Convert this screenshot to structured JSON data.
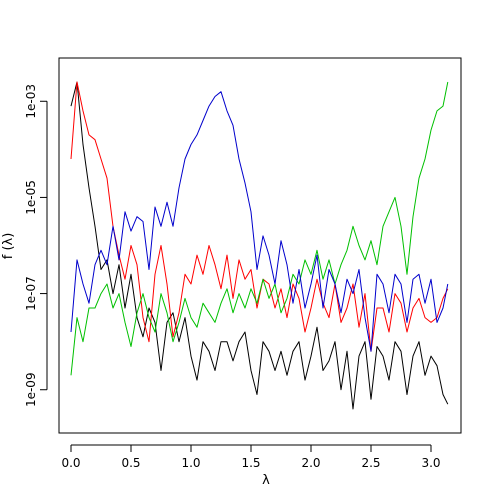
{
  "chart_data": {
    "type": "line",
    "title": "",
    "xlabel": "λ",
    "ylabel": "f (λ)",
    "xlim": [
      -0.1,
      3.25
    ],
    "ylim_log10": [
      -9.9,
      -2.1
    ],
    "y_scale": "log",
    "grid": false,
    "legend": "none",
    "x_ticks": [
      0.0,
      0.5,
      1.0,
      1.5,
      2.0,
      2.5,
      3.0
    ],
    "x_tick_labels": [
      "0.0",
      "0.5",
      "1.0",
      "1.5",
      "2.0",
      "2.5",
      "3.0"
    ],
    "y_ticks_log10": [
      -9,
      -7,
      -5,
      -3
    ],
    "y_tick_labels": [
      "1e-09",
      "1e-07",
      "1e-05",
      "1e-03"
    ],
    "series": [
      {
        "color": "#000000",
        "points_log10": [
          [
            0.0,
            -3.1
          ],
          [
            0.05,
            -2.6
          ],
          [
            0.1,
            -3.9
          ],
          [
            0.15,
            -4.8
          ],
          [
            0.2,
            -5.6
          ],
          [
            0.25,
            -6.5
          ],
          [
            0.3,
            -6.3
          ],
          [
            0.35,
            -7.0
          ],
          [
            0.4,
            -6.4
          ],
          [
            0.45,
            -7.3
          ],
          [
            0.5,
            -6.6
          ],
          [
            0.55,
            -7.5
          ],
          [
            0.6,
            -7.9
          ],
          [
            0.65,
            -7.3
          ],
          [
            0.7,
            -7.6
          ],
          [
            0.75,
            -8.6
          ],
          [
            0.8,
            -7.6
          ],
          [
            0.85,
            -7.4
          ],
          [
            0.9,
            -8.0
          ],
          [
            0.95,
            -7.5
          ],
          [
            1.0,
            -8.3
          ],
          [
            1.05,
            -8.8
          ],
          [
            1.1,
            -8.0
          ],
          [
            1.15,
            -8.2
          ],
          [
            1.2,
            -8.6
          ],
          [
            1.25,
            -8.0
          ],
          [
            1.3,
            -8.0
          ],
          [
            1.35,
            -8.4
          ],
          [
            1.4,
            -8.0
          ],
          [
            1.45,
            -7.8
          ],
          [
            1.5,
            -8.6
          ],
          [
            1.55,
            -9.1
          ],
          [
            1.6,
            -8.0
          ],
          [
            1.65,
            -8.2
          ],
          [
            1.7,
            -8.6
          ],
          [
            1.75,
            -8.2
          ],
          [
            1.8,
            -8.7
          ],
          [
            1.85,
            -8.2
          ],
          [
            1.9,
            -8.0
          ],
          [
            1.95,
            -8.8
          ],
          [
            2.0,
            -8.3
          ],
          [
            2.05,
            -7.7
          ],
          [
            2.1,
            -8.6
          ],
          [
            2.15,
            -8.4
          ],
          [
            2.2,
            -8.0
          ],
          [
            2.25,
            -9.0
          ],
          [
            2.3,
            -8.2
          ],
          [
            2.35,
            -9.4
          ],
          [
            2.4,
            -8.3
          ],
          [
            2.45,
            -8.0
          ],
          [
            2.5,
            -9.2
          ],
          [
            2.55,
            -8.1
          ],
          [
            2.6,
            -8.3
          ],
          [
            2.65,
            -8.8
          ],
          [
            2.7,
            -8.0
          ],
          [
            2.75,
            -8.2
          ],
          [
            2.8,
            -9.1
          ],
          [
            2.85,
            -8.3
          ],
          [
            2.9,
            -8.0
          ],
          [
            2.95,
            -8.7
          ],
          [
            3.0,
            -8.3
          ],
          [
            3.05,
            -8.5
          ],
          [
            3.1,
            -9.1
          ],
          [
            3.14,
            -9.3
          ]
        ]
      },
      {
        "color": "#ff0000",
        "points_log10": [
          [
            0.0,
            -4.2
          ],
          [
            0.05,
            -2.6
          ],
          [
            0.1,
            -3.2
          ],
          [
            0.15,
            -3.7
          ],
          [
            0.2,
            -3.8
          ],
          [
            0.25,
            -4.2
          ],
          [
            0.3,
            -4.6
          ],
          [
            0.35,
            -5.6
          ],
          [
            0.4,
            -6.2
          ],
          [
            0.45,
            -6.7
          ],
          [
            0.5,
            -6.0
          ],
          [
            0.55,
            -6.4
          ],
          [
            0.6,
            -7.5
          ],
          [
            0.65,
            -8.0
          ],
          [
            0.7,
            -6.6
          ],
          [
            0.75,
            -6.0
          ],
          [
            0.8,
            -6.8
          ],
          [
            0.85,
            -7.9
          ],
          [
            0.9,
            -7.4
          ],
          [
            0.95,
            -6.6
          ],
          [
            1.0,
            -6.8
          ],
          [
            1.05,
            -6.2
          ],
          [
            1.1,
            -6.6
          ],
          [
            1.15,
            -6.0
          ],
          [
            1.2,
            -6.4
          ],
          [
            1.25,
            -6.9
          ],
          [
            1.3,
            -6.2
          ],
          [
            1.35,
            -7.1
          ],
          [
            1.4,
            -6.3
          ],
          [
            1.45,
            -6.7
          ],
          [
            1.5,
            -6.5
          ],
          [
            1.55,
            -7.3
          ],
          [
            1.6,
            -6.7
          ],
          [
            1.65,
            -6.8
          ],
          [
            1.7,
            -7.3
          ],
          [
            1.75,
            -6.9
          ],
          [
            1.8,
            -7.5
          ],
          [
            1.85,
            -6.8
          ],
          [
            1.9,
            -7.1
          ],
          [
            1.95,
            -7.8
          ],
          [
            2.0,
            -7.3
          ],
          [
            2.05,
            -6.7
          ],
          [
            2.1,
            -7.2
          ],
          [
            2.15,
            -7.5
          ],
          [
            2.2,
            -6.8
          ],
          [
            2.25,
            -7.6
          ],
          [
            2.3,
            -7.3
          ],
          [
            2.35,
            -6.8
          ],
          [
            2.4,
            -7.7
          ],
          [
            2.45,
            -7.0
          ],
          [
            2.5,
            -8.2
          ],
          [
            2.55,
            -7.3
          ],
          [
            2.6,
            -7.3
          ],
          [
            2.65,
            -7.8
          ],
          [
            2.7,
            -7.0
          ],
          [
            2.75,
            -7.2
          ],
          [
            2.8,
            -7.8
          ],
          [
            2.85,
            -7.3
          ],
          [
            2.9,
            -7.1
          ],
          [
            2.95,
            -7.5
          ],
          [
            3.0,
            -7.6
          ],
          [
            3.05,
            -7.5
          ],
          [
            3.1,
            -7.1
          ],
          [
            3.14,
            -6.9
          ]
        ]
      },
      {
        "color": "#00c000",
        "points_log10": [
          [
            0.0,
            -8.7
          ],
          [
            0.05,
            -7.5
          ],
          [
            0.1,
            -8.0
          ],
          [
            0.15,
            -7.3
          ],
          [
            0.2,
            -7.3
          ],
          [
            0.25,
            -7.0
          ],
          [
            0.3,
            -6.8
          ],
          [
            0.35,
            -7.3
          ],
          [
            0.4,
            -7.0
          ],
          [
            0.45,
            -7.6
          ],
          [
            0.5,
            -8.1
          ],
          [
            0.55,
            -7.4
          ],
          [
            0.6,
            -7.0
          ],
          [
            0.65,
            -7.5
          ],
          [
            0.7,
            -7.8
          ],
          [
            0.75,
            -7.0
          ],
          [
            0.8,
            -7.4
          ],
          [
            0.85,
            -8.0
          ],
          [
            0.9,
            -7.6
          ],
          [
            0.95,
            -7.1
          ],
          [
            1.0,
            -7.5
          ],
          [
            1.05,
            -7.7
          ],
          [
            1.1,
            -7.2
          ],
          [
            1.15,
            -7.4
          ],
          [
            1.2,
            -7.6
          ],
          [
            1.25,
            -7.2
          ],
          [
            1.3,
            -6.9
          ],
          [
            1.35,
            -7.4
          ],
          [
            1.4,
            -7.0
          ],
          [
            1.45,
            -7.3
          ],
          [
            1.5,
            -6.9
          ],
          [
            1.55,
            -7.2
          ],
          [
            1.6,
            -6.7
          ],
          [
            1.65,
            -7.1
          ],
          [
            1.7,
            -6.8
          ],
          [
            1.75,
            -7.4
          ],
          [
            1.8,
            -7.1
          ],
          [
            1.85,
            -6.6
          ],
          [
            1.9,
            -6.8
          ],
          [
            1.95,
            -6.3
          ],
          [
            2.0,
            -6.6
          ],
          [
            2.05,
            -6.1
          ],
          [
            2.1,
            -6.7
          ],
          [
            2.15,
            -6.3
          ],
          [
            2.2,
            -6.8
          ],
          [
            2.25,
            -6.4
          ],
          [
            2.3,
            -6.1
          ],
          [
            2.35,
            -5.6
          ],
          [
            2.4,
            -6.0
          ],
          [
            2.45,
            -6.3
          ],
          [
            2.5,
            -5.9
          ],
          [
            2.55,
            -6.4
          ],
          [
            2.6,
            -5.6
          ],
          [
            2.65,
            -5.3
          ],
          [
            2.7,
            -5.0
          ],
          [
            2.75,
            -5.6
          ],
          [
            2.8,
            -6.6
          ],
          [
            2.85,
            -5.4
          ],
          [
            2.9,
            -4.6
          ],
          [
            2.95,
            -4.2
          ],
          [
            3.0,
            -3.6
          ],
          [
            3.05,
            -3.2
          ],
          [
            3.1,
            -3.1
          ],
          [
            3.14,
            -2.6
          ]
        ]
      },
      {
        "color": "#0000cc",
        "points_log10": [
          [
            0.0,
            -7.8
          ],
          [
            0.05,
            -6.3
          ],
          [
            0.1,
            -6.8
          ],
          [
            0.15,
            -7.2
          ],
          [
            0.2,
            -6.4
          ],
          [
            0.25,
            -6.1
          ],
          [
            0.3,
            -6.4
          ],
          [
            0.35,
            -5.6
          ],
          [
            0.4,
            -6.3
          ],
          [
            0.45,
            -5.3
          ],
          [
            0.5,
            -5.7
          ],
          [
            0.55,
            -5.4
          ],
          [
            0.6,
            -5.5
          ],
          [
            0.65,
            -6.5
          ],
          [
            0.7,
            -5.2
          ],
          [
            0.75,
            -5.6
          ],
          [
            0.8,
            -5.1
          ],
          [
            0.85,
            -5.6
          ],
          [
            0.9,
            -4.8
          ],
          [
            0.95,
            -4.2
          ],
          [
            1.0,
            -3.9
          ],
          [
            1.05,
            -3.7
          ],
          [
            1.1,
            -3.4
          ],
          [
            1.15,
            -3.1
          ],
          [
            1.2,
            -2.9
          ],
          [
            1.25,
            -2.8
          ],
          [
            1.3,
            -3.2
          ],
          [
            1.35,
            -3.5
          ],
          [
            1.4,
            -4.2
          ],
          [
            1.45,
            -4.7
          ],
          [
            1.5,
            -5.3
          ],
          [
            1.55,
            -6.5
          ],
          [
            1.6,
            -5.8
          ],
          [
            1.65,
            -6.2
          ],
          [
            1.7,
            -6.8
          ],
          [
            1.75,
            -5.9
          ],
          [
            1.8,
            -6.4
          ],
          [
            1.85,
            -7.2
          ],
          [
            1.9,
            -6.5
          ],
          [
            1.95,
            -7.3
          ],
          [
            2.0,
            -6.8
          ],
          [
            2.05,
            -6.2
          ],
          [
            2.1,
            -7.3
          ],
          [
            2.15,
            -6.5
          ],
          [
            2.2,
            -6.8
          ],
          [
            2.25,
            -7.4
          ],
          [
            2.3,
            -6.7
          ],
          [
            2.35,
            -7.0
          ],
          [
            2.4,
            -6.5
          ],
          [
            2.45,
            -7.5
          ],
          [
            2.5,
            -8.2
          ],
          [
            2.55,
            -6.6
          ],
          [
            2.6,
            -6.8
          ],
          [
            2.65,
            -7.4
          ],
          [
            2.7,
            -6.6
          ],
          [
            2.75,
            -6.8
          ],
          [
            2.8,
            -7.6
          ],
          [
            2.85,
            -6.7
          ],
          [
            2.9,
            -6.6
          ],
          [
            2.95,
            -7.2
          ],
          [
            3.0,
            -6.7
          ],
          [
            3.05,
            -7.6
          ],
          [
            3.1,
            -7.3
          ],
          [
            3.14,
            -6.8
          ]
        ]
      }
    ]
  }
}
